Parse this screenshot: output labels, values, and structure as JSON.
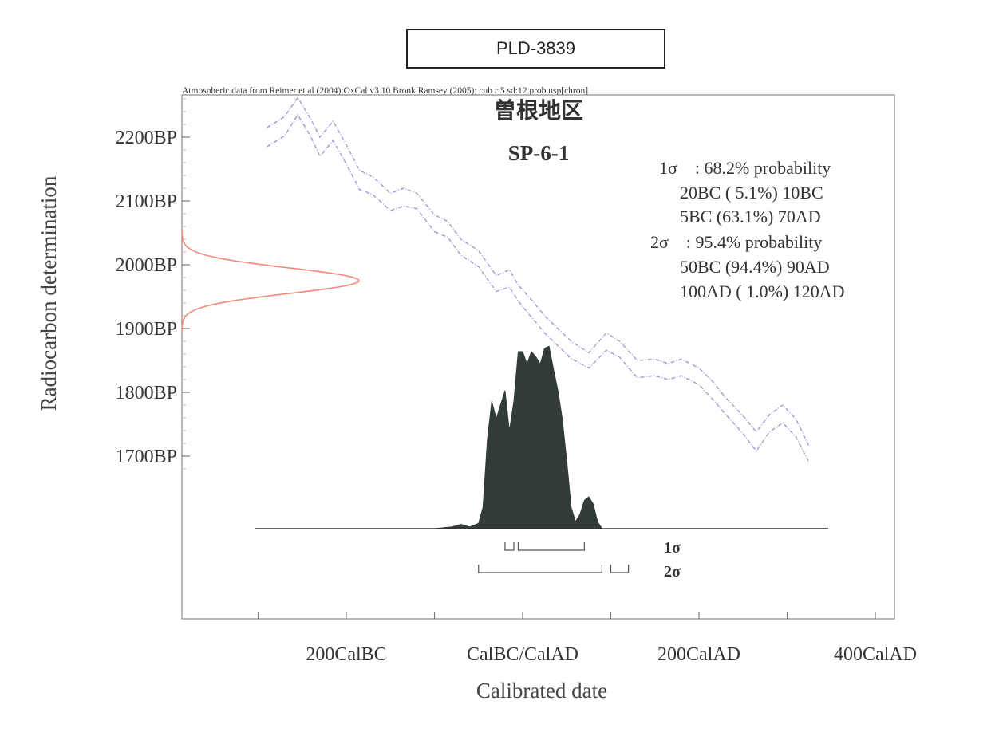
{
  "sample_id": "PLD-3839",
  "chart_data": {
    "type": "area",
    "attribution": "Atmospheric data from Reimer et al (2004);OxCal v3.10 Bronk Ramsey (2005); cub r:5 sd:12 prob usp[chron]",
    "title": "曽根地区",
    "subtitle": "SP-6-1",
    "xlabel": "Calibrated date",
    "ylabel": "Radiocarbon determination",
    "xlim": [
      -310,
      420
    ],
    "ylim": [
      1565,
      2270
    ],
    "x_ticks": [
      -300,
      -200,
      -100,
      0,
      100,
      200,
      300,
      400
    ],
    "x_tick_labels": [
      {
        "value": -200,
        "label": "200CalBC"
      },
      {
        "value": 0,
        "label": "CalBC/CalAD"
      },
      {
        "value": 200,
        "label": "200CalAD"
      },
      {
        "value": 400,
        "label": "400CalAD"
      }
    ],
    "y_tick_labels": [
      {
        "value": 2200,
        "label": "2200BP"
      },
      {
        "value": 2100,
        "label": "2100BP"
      },
      {
        "value": 2000,
        "label": "2000BP"
      },
      {
        "value": 1900,
        "label": "1900BP"
      },
      {
        "value": 1800,
        "label": "1800BP"
      },
      {
        "value": 1700,
        "label": "1700BP"
      }
    ],
    "measurement": {
      "mean": 1975,
      "sd": 20
    },
    "calibration_curve": {
      "color": "#9b9bd6",
      "x": [
        -290,
        -270,
        -255,
        -240,
        -230,
        -215,
        -200,
        -185,
        -170,
        -150,
        -135,
        -120,
        -100,
        -85,
        -70,
        -50,
        -30,
        -15,
        -5,
        10,
        25,
        40,
        55,
        75,
        95,
        110,
        130,
        150,
        165,
        180,
        200,
        215,
        230,
        250,
        265,
        280,
        295,
        310,
        325
      ],
      "upper": [
        2215,
        2232,
        2262,
        2228,
        2200,
        2225,
        2188,
        2148,
        2138,
        2112,
        2120,
        2112,
        2078,
        2068,
        2040,
        2022,
        1983,
        1992,
        1968,
        1945,
        1920,
        1900,
        1880,
        1862,
        1893,
        1880,
        1850,
        1852,
        1845,
        1852,
        1838,
        1818,
        1792,
        1763,
        1738,
        1765,
        1780,
        1758,
        1715
      ],
      "lower": [
        2185,
        2202,
        2235,
        2200,
        2170,
        2195,
        2158,
        2118,
        2110,
        2085,
        2092,
        2088,
        2052,
        2043,
        2015,
        1997,
        1958,
        1965,
        1943,
        1918,
        1893,
        1873,
        1853,
        1838,
        1866,
        1855,
        1823,
        1826,
        1820,
        1826,
        1812,
        1790,
        1766,
        1735,
        1708,
        1738,
        1752,
        1730,
        1690
      ]
    },
    "probability_distribution": {
      "color": "#333a3a",
      "x": [
        -140,
        -100,
        -80,
        -70,
        -60,
        -50,
        -45,
        -40,
        -35,
        -30,
        -25,
        -20,
        -15,
        -10,
        -5,
        0,
        5,
        10,
        15,
        20,
        25,
        30,
        35,
        40,
        45,
        50,
        55,
        60,
        65,
        70,
        75,
        80,
        85,
        90,
        95,
        100,
        105,
        110,
        115,
        120,
        125,
        130
      ],
      "y": [
        0,
        0,
        0.01,
        0.025,
        0.01,
        0.03,
        0.12,
        0.5,
        0.72,
        0.62,
        0.7,
        0.78,
        0.55,
        0.72,
        1.0,
        1.0,
        0.93,
        1.0,
        0.97,
        0.93,
        1.02,
        1.03,
        0.9,
        0.78,
        0.62,
        0.38,
        0.12,
        0.04,
        0.08,
        0.16,
        0.18,
        0.14,
        0.04,
        0,
        0,
        0,
        0,
        0,
        0,
        0,
        0,
        0
      ]
    },
    "legend": [
      "1σ　: 68.2% probability",
      "20BC ( 5.1%) 10BC",
      "5BC (63.1%) 70AD",
      "2σ　: 95.4% probability",
      "50BC (94.4%) 90AD",
      "100AD ( 1.0%) 120AD"
    ],
    "ranges_1sigma_label": "1σ",
    "ranges_1sigma": [
      [
        -20,
        -10
      ],
      [
        -5,
        70
      ]
    ],
    "ranges_2sigma_label": "2σ",
    "ranges_2sigma": [
      [
        -50,
        90
      ],
      [
        100,
        120
      ]
    ]
  }
}
